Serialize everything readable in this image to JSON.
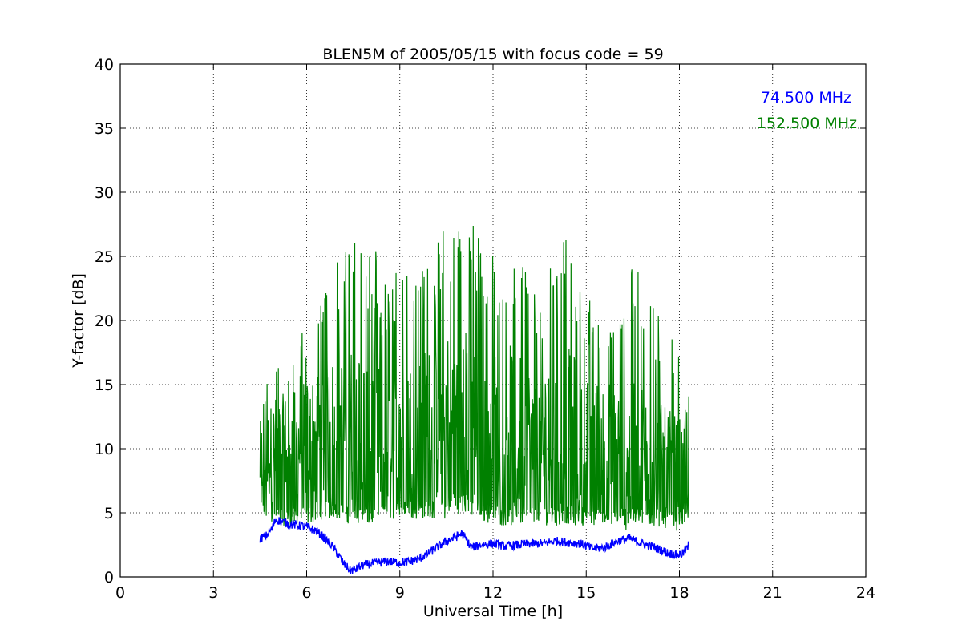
{
  "chart_data": {
    "type": "line",
    "title": "BLEN5M of 2005/05/15 with focus code = 59",
    "xlabel": "Universal Time [h]",
    "ylabel": "Y-factor [dB]",
    "xlim": [
      0,
      24
    ],
    "ylim": [
      0,
      40
    ],
    "xticks": [
      0,
      3,
      6,
      9,
      12,
      15,
      18,
      21,
      24
    ],
    "yticks": [
      0,
      5,
      10,
      15,
      20,
      25,
      30,
      35,
      40
    ],
    "grid": true,
    "legend_position": "top-right",
    "series": [
      {
        "name": "74.500 MHz",
        "color": "#0000ff",
        "x": [
          4.5,
          4.7,
          4.9,
          5.0,
          5.2,
          5.5,
          5.8,
          6.0,
          6.3,
          6.5,
          6.8,
          7.0,
          7.2,
          7.4,
          7.6,
          7.8,
          8.0,
          8.3,
          8.6,
          9.0,
          9.3,
          9.6,
          9.9,
          10.2,
          10.5,
          10.8,
          11.0,
          11.3,
          11.6,
          12.0,
          12.4,
          12.8,
          13.2,
          13.6,
          14.0,
          14.4,
          14.8,
          15.2,
          15.6,
          16.0,
          16.4,
          16.8,
          17.2,
          17.6,
          17.9,
          18.1,
          18.3
        ],
        "values": [
          3.0,
          3.2,
          3.8,
          4.5,
          4.3,
          4.1,
          4.0,
          3.9,
          3.6,
          3.2,
          2.5,
          1.8,
          1.0,
          0.5,
          0.6,
          0.9,
          1.0,
          1.1,
          1.2,
          1.1,
          1.2,
          1.4,
          1.8,
          2.3,
          2.8,
          3.1,
          3.4,
          2.3,
          2.5,
          2.6,
          2.4,
          2.5,
          2.6,
          2.6,
          2.8,
          2.7,
          2.6,
          2.2,
          2.3,
          2.8,
          3.0,
          2.6,
          2.3,
          1.9,
          1.7,
          1.8,
          2.4
        ]
      },
      {
        "name": "152.500 MHz",
        "color": "#008000",
        "x": [
          4.5,
          5.0,
          5.5,
          6.0,
          6.5,
          7.0,
          7.5,
          8.0,
          8.5,
          9.0,
          9.5,
          10.0,
          10.5,
          11.0,
          11.5,
          12.0,
          12.5,
          13.0,
          13.5,
          14.0,
          14.5,
          15.0,
          15.5,
          16.0,
          16.5,
          17.0,
          17.5,
          18.0,
          18.3
        ],
        "values": [
          9.0,
          10.0,
          10.5,
          10.5,
          11.0,
          11.5,
          11.5,
          11.0,
          10.5,
          11.0,
          11.5,
          12.0,
          12.5,
          12.5,
          12.0,
          11.5,
          11.5,
          11.0,
          10.5,
          10.5,
          11.0,
          10.5,
          10.0,
          10.0,
          9.5,
          9.0,
          8.5,
          8.0,
          7.5
        ],
        "upper_envelope": [
          15.0,
          18.0,
          17.0,
          20.0,
          24.0,
          25.0,
          27.0,
          27.5,
          23.0,
          24.0,
          24.0,
          26.0,
          28.0,
          29.5,
          27.0,
          25.0,
          27.0,
          25.0,
          22.0,
          25.0,
          27.5,
          22.0,
          22.0,
          24.0,
          25.5,
          22.0,
          20.0,
          19.0,
          14.5
        ],
        "lower_envelope": [
          4.5,
          4.0,
          4.0,
          4.0,
          4.5,
          4.5,
          4.0,
          4.0,
          4.5,
          4.5,
          4.5,
          4.5,
          4.5,
          5.0,
          4.5,
          4.0,
          4.0,
          4.0,
          4.0,
          4.0,
          4.0,
          4.0,
          4.0,
          4.0,
          4.0,
          4.0,
          4.0,
          4.0,
          4.0
        ]
      }
    ]
  }
}
